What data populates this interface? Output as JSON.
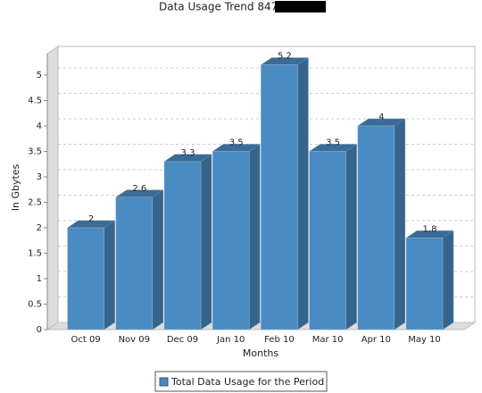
{
  "chart_data": {
    "type": "bar",
    "title": "Data Usage Trend 847-",
    "x_label": "Months",
    "y_label": "In Gbytes",
    "categories": [
      "Oct 09",
      "Nov 09",
      "Dec 09",
      "Jan 10",
      "Feb 10",
      "Mar 10",
      "Apr 10",
      "May 10"
    ],
    "series": [
      {
        "name": "Total Data Usage for the Period",
        "color": "#4a8bc2",
        "values": [
          2,
          2.6,
          3.3,
          3.5,
          5.2,
          3.5,
          4,
          1.8
        ]
      }
    ],
    "ylim": [
      0,
      5.5
    ],
    "yticks": [
      0,
      0.5,
      1,
      1.5,
      2,
      2.5,
      3,
      3.5,
      4,
      4.5,
      5
    ],
    "grid": true,
    "legend": "bottom"
  }
}
